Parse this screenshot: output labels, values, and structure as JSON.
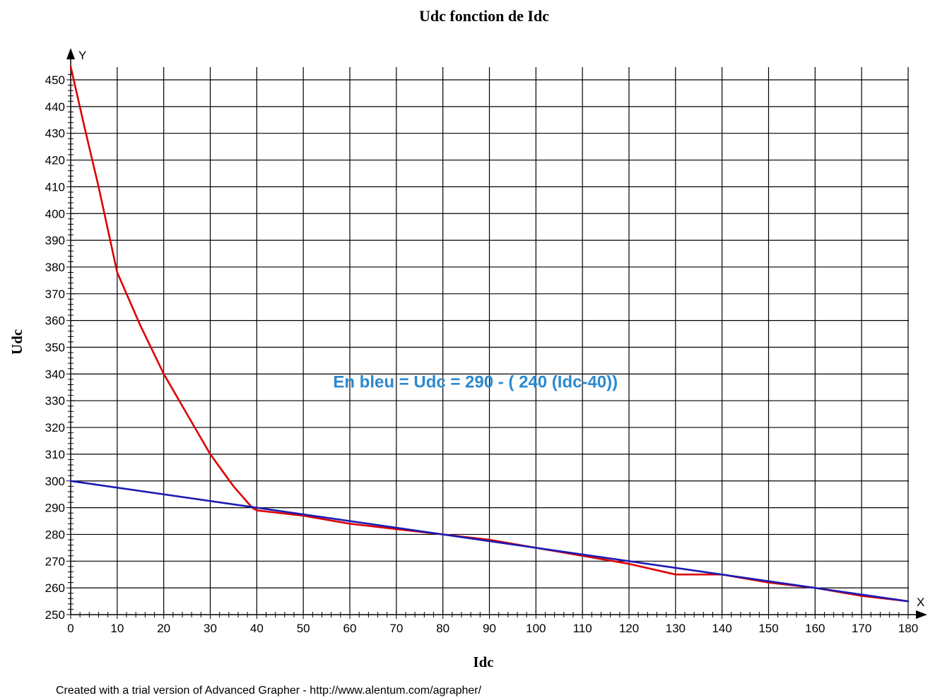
{
  "chart_data": {
    "type": "line",
    "title": "Udc fonction de Idc",
    "xlabel": "Idc",
    "ylabel": "Udc",
    "x_axis_name": "X",
    "y_axis_name": "Y",
    "xlim": [
      0,
      180
    ],
    "ylim": [
      250,
      455
    ],
    "x_ticks": [
      0,
      10,
      20,
      30,
      40,
      50,
      60,
      70,
      80,
      90,
      100,
      110,
      120,
      130,
      140,
      150,
      160,
      170,
      180
    ],
    "y_ticks": [
      250,
      260,
      270,
      280,
      290,
      300,
      310,
      320,
      330,
      340,
      350,
      360,
      370,
      380,
      390,
      400,
      410,
      420,
      430,
      440,
      450
    ],
    "grid": true,
    "series": [
      {
        "color": "#dd0000",
        "points": [
          [
            0,
            455
          ],
          [
            3,
            432
          ],
          [
            6,
            410
          ],
          [
            10,
            378
          ],
          [
            15,
            358
          ],
          [
            20,
            340
          ],
          [
            25,
            325
          ],
          [
            30,
            310
          ],
          [
            35,
            298
          ],
          [
            39,
            290
          ],
          [
            40,
            289
          ],
          [
            50,
            287
          ],
          [
            60,
            284
          ],
          [
            70,
            282
          ],
          [
            80,
            280
          ],
          [
            90,
            278
          ],
          [
            100,
            275
          ],
          [
            110,
            272
          ],
          [
            120,
            269
          ],
          [
            130,
            265
          ],
          [
            140,
            265
          ],
          [
            150,
            262
          ],
          [
            160,
            260
          ],
          [
            170,
            257
          ],
          [
            180,
            255
          ]
        ]
      },
      {
        "color": "#1a1ab4",
        "points": [
          [
            0,
            300
          ],
          [
            180,
            255
          ]
        ]
      }
    ],
    "annotation": {
      "text": "En bleu =  Udc = 290 - ( 240 (Idc-40))",
      "x": 87,
      "y": 337,
      "color": "#2b8ad0"
    }
  },
  "footer": "Created with a trial version of Advanced Grapher - http://www.alentum.com/agrapher/"
}
